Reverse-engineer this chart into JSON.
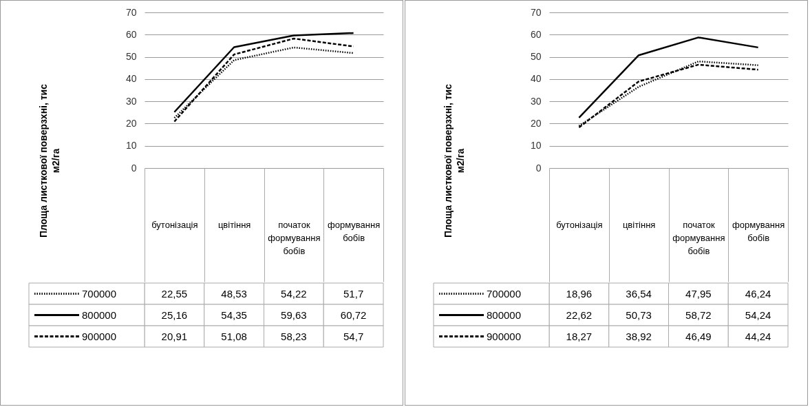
{
  "chart_data": [
    {
      "type": "line",
      "ylabel": "Площа листкової поверзхні, тис м2/га",
      "categories": [
        "бутонізація",
        "цвітіння",
        "початок формування бобів",
        "формування бобів"
      ],
      "ylim": [
        0,
        70
      ],
      "yticks": [
        0,
        10,
        20,
        30,
        40,
        50,
        60,
        70
      ],
      "grid": "y",
      "legend": "bottom left",
      "series": [
        {
          "name": "700000",
          "color": "#000000",
          "line_style": "dotted",
          "values": [
            22.55,
            48.53,
            54.22,
            51.7
          ],
          "value_labels": [
            "22,55",
            "48,53",
            "54,22",
            "51,7"
          ]
        },
        {
          "name": "800000",
          "color": "#000000",
          "line_style": "solid",
          "values": [
            25.16,
            54.35,
            59.63,
            60.72
          ],
          "value_labels": [
            "25,16",
            "54,35",
            "59,63",
            "60,72"
          ]
        },
        {
          "name": "900000",
          "color": "#000000",
          "line_style": "dashed",
          "values": [
            20.91,
            51.08,
            58.23,
            54.7
          ],
          "value_labels": [
            "20,91",
            "51,08",
            "58,23",
            "54,7"
          ]
        }
      ]
    },
    {
      "type": "line",
      "ylabel": "Площа листкової поверзхні, тис м2/га",
      "categories": [
        "бутонізація",
        "цвітіння",
        "початок формування бобів",
        "формування бобів"
      ],
      "ylim": [
        0,
        70
      ],
      "yticks": [
        0,
        10,
        20,
        30,
        40,
        50,
        60,
        70
      ],
      "grid": "y",
      "legend": "bottom left",
      "series": [
        {
          "name": "700000",
          "color": "#000000",
          "line_style": "dotted",
          "values": [
            18.96,
            36.54,
            47.95,
            46.24
          ],
          "value_labels": [
            "18,96",
            "36,54",
            "47,95",
            "46,24"
          ]
        },
        {
          "name": "800000",
          "color": "#000000",
          "line_style": "solid",
          "values": [
            22.62,
            50.73,
            58.72,
            54.24
          ],
          "value_labels": [
            "22,62",
            "50,73",
            "58,72",
            "54,24"
          ]
        },
        {
          "name": "900000",
          "color": "#000000",
          "line_style": "dashed",
          "values": [
            18.27,
            38.92,
            46.49,
            44.24
          ],
          "value_labels": [
            "18,27",
            "38,92",
            "46,49",
            "44,24"
          ]
        }
      ]
    }
  ]
}
